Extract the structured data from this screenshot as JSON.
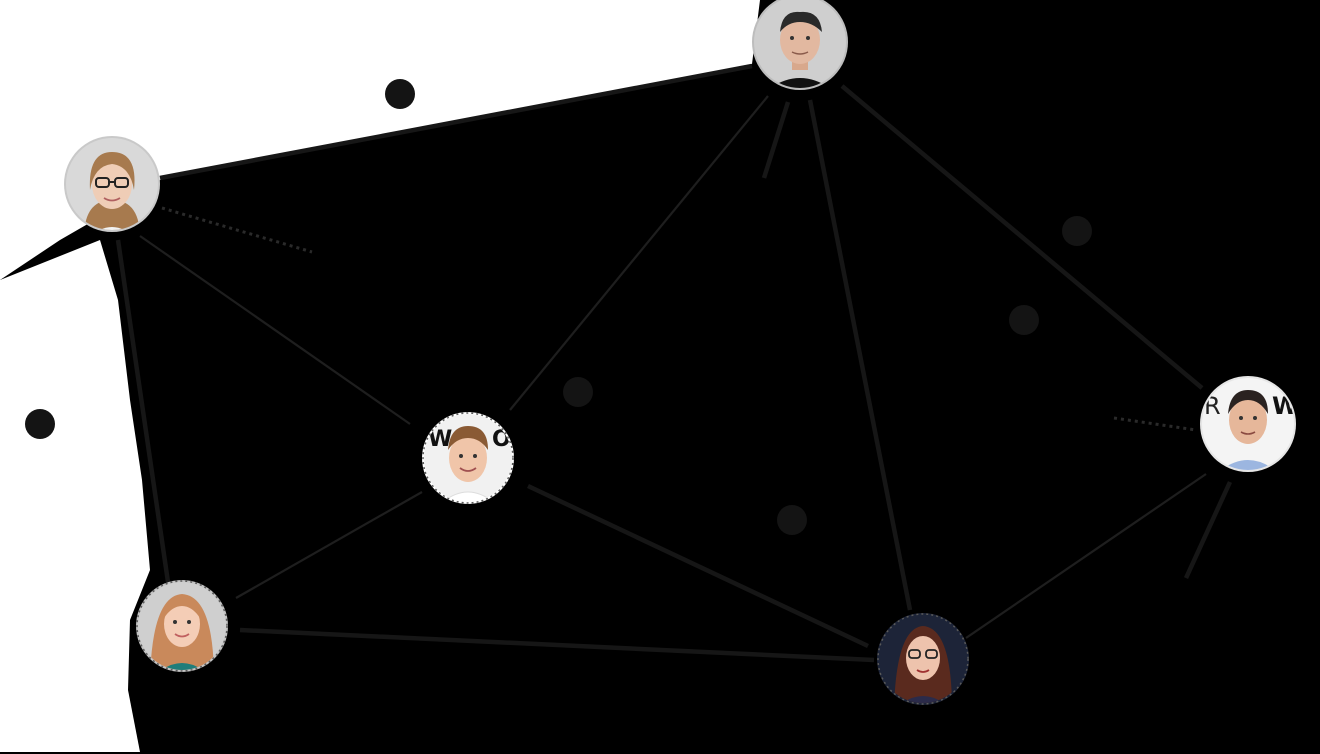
{
  "diagram": {
    "type": "network-graph",
    "nodes": [
      {
        "id": "top-man",
        "kind": "person-photo",
        "hair": "#2a2a2a",
        "skin": "#e2b8a0",
        "shirt": "#111111",
        "backdrop": "#cfcfcf"
      },
      {
        "id": "left-woman-glasses",
        "kind": "person-photo",
        "hair": "#a77a4e",
        "skin": "#efcdb6",
        "shirt": "#f2f2f2",
        "backdrop": "#d9d9d9"
      },
      {
        "id": "center-man",
        "kind": "person-photo",
        "hair": "#8a5a34",
        "skin": "#f0c5a9",
        "shirt": "#ffffff",
        "backdrop": "#f1f1f1"
      },
      {
        "id": "bottom-left-woman",
        "kind": "person-photo",
        "hair": "#c9895b",
        "skin": "#f4cdb6",
        "shirt": "#1f7d7a",
        "backdrop": "#cfcfcf"
      },
      {
        "id": "bottom-right-woman",
        "kind": "person-photo",
        "hair": "#5a2a1e",
        "skin": "#eec3ad",
        "shirt": "#2b2b4a",
        "backdrop": "#1d2438"
      },
      {
        "id": "right-man",
        "kind": "person-photo",
        "hair": "#2a2220",
        "skin": "#e6b79a",
        "shirt": "#9cb6e0",
        "backdrop": "#f4f4f4"
      }
    ],
    "edges": [
      [
        "left-woman-glasses",
        "top-man"
      ],
      [
        "left-woman-glasses",
        "center-man"
      ],
      [
        "left-woman-glasses",
        "bottom-left-woman"
      ],
      [
        "center-man",
        "top-man"
      ],
      [
        "center-man",
        "bottom-left-woman"
      ],
      [
        "center-man",
        "bottom-right-woman"
      ],
      [
        "top-man",
        "bottom-right-woman"
      ],
      [
        "top-man",
        "right-man"
      ],
      [
        "bottom-right-woman",
        "right-man"
      ],
      [
        "bottom-left-woman",
        "bottom-right-woman"
      ]
    ],
    "colors": {
      "background": "#000000",
      "edge": "#1e1e1e",
      "marker": "#141414",
      "white_area": "#ffffff"
    }
  }
}
